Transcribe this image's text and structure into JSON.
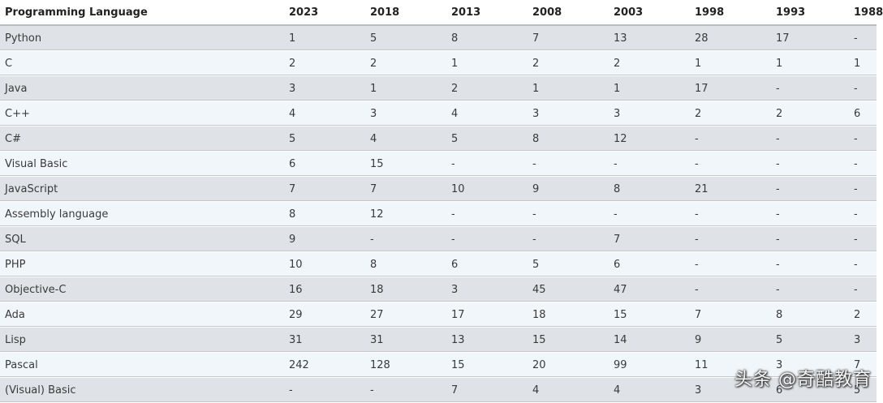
{
  "table": {
    "headers": [
      "Programming Language",
      "2023",
      "2018",
      "2013",
      "2008",
      "2003",
      "1998",
      "1993",
      "1988"
    ],
    "rows": [
      [
        "Python",
        "1",
        "5",
        "8",
        "7",
        "13",
        "28",
        "17",
        "-"
      ],
      [
        "C",
        "2",
        "2",
        "1",
        "2",
        "2",
        "1",
        "1",
        "1"
      ],
      [
        "Java",
        "3",
        "1",
        "2",
        "1",
        "1",
        "17",
        "-",
        "-"
      ],
      [
        "C++",
        "4",
        "3",
        "4",
        "3",
        "3",
        "2",
        "2",
        "6"
      ],
      [
        "C#",
        "5",
        "4",
        "5",
        "8",
        "12",
        "-",
        "-",
        "-"
      ],
      [
        "Visual Basic",
        "6",
        "15",
        "-",
        "-",
        "-",
        "-",
        "-",
        "-"
      ],
      [
        "JavaScript",
        "7",
        "7",
        "10",
        "9",
        "8",
        "21",
        "-",
        "-"
      ],
      [
        "Assembly language",
        "8",
        "12",
        "-",
        "-",
        "-",
        "-",
        "-",
        "-"
      ],
      [
        "SQL",
        "9",
        "-",
        "-",
        "-",
        "7",
        "-",
        "-",
        "-"
      ],
      [
        "PHP",
        "10",
        "8",
        "6",
        "5",
        "6",
        "-",
        "-",
        "-"
      ],
      [
        "Objective-C",
        "16",
        "18",
        "3",
        "45",
        "47",
        "-",
        "-",
        "-"
      ],
      [
        "Ada",
        "29",
        "27",
        "17",
        "18",
        "15",
        "7",
        "8",
        "2"
      ],
      [
        "Lisp",
        "31",
        "31",
        "13",
        "15",
        "14",
        "9",
        "5",
        "3"
      ],
      [
        "Pascal",
        "242",
        "128",
        "15",
        "20",
        "99",
        "11",
        "3",
        "7"
      ],
      [
        "(Visual) Basic",
        "-",
        "-",
        "7",
        "4",
        "4",
        "3",
        "6",
        "5"
      ]
    ]
  },
  "watermark": {
    "text": "头条 @奇酷教育"
  }
}
